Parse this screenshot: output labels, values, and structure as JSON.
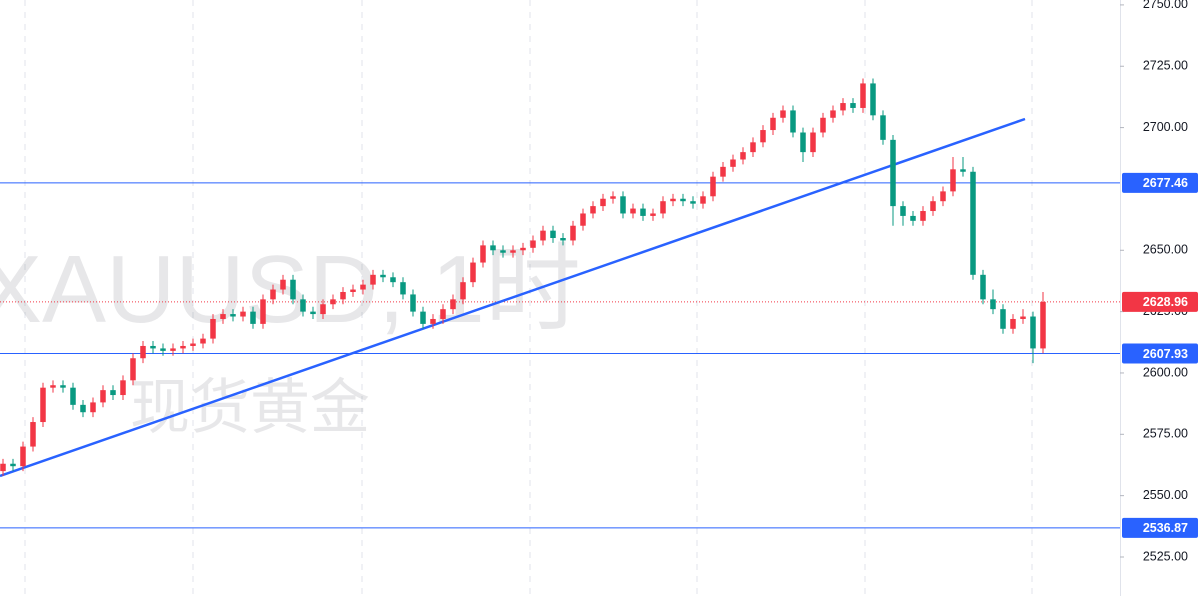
{
  "chart_data": {
    "type": "candlestick",
    "watermark": [
      "XAUUSD, 1时",
      "现货黄金"
    ],
    "up_color": "#f23645",
    "down_color": "#089981",
    "ylim": [
      2509.1,
      2752.0
    ],
    "yticks": [
      {
        "value": 2525,
        "label": "2525.00"
      },
      {
        "value": 2550,
        "label": "2550.00"
      },
      {
        "value": 2575,
        "label": "2575.00"
      },
      {
        "value": 2600,
        "label": "2600.00"
      },
      {
        "value": 2625,
        "label": "2625.00"
      },
      {
        "value": 2650,
        "label": "2650.00"
      },
      {
        "value": 2700,
        "label": "2700.00"
      },
      {
        "value": 2725,
        "label": "2725.00"
      },
      {
        "value": 2750,
        "label": "2750.00"
      }
    ],
    "price_lines": [
      {
        "value": 2677.46,
        "color": "#2962ff"
      },
      {
        "value": 2607.93,
        "color": "#2962ff"
      },
      {
        "value": 2536.87,
        "color": "#2962ff"
      }
    ],
    "last_price": {
      "value": 2628.96,
      "color": "#f23645"
    },
    "open": [
      2560,
      2563,
      2562,
      2570,
      2580,
      2594,
      2595,
      2594,
      2587,
      2584,
      2588,
      2593,
      2591,
      2597,
      2606,
      2611,
      2610,
      2609,
      2610,
      2611,
      2612,
      2614,
      2622,
      2624,
      2623,
      2625,
      2620,
      2630,
      2634,
      2638,
      2630,
      2625,
      2624,
      2628,
      2630,
      2633,
      2634,
      2636,
      2640,
      2639,
      2637,
      2632,
      2625,
      2620,
      2622,
      2626,
      2630,
      2637,
      2645,
      2652,
      2650,
      2649,
      2650,
      2651,
      2654,
      2658,
      2655,
      2654,
      2660,
      2665,
      2668,
      2671,
      2672,
      2665,
      2667,
      2664,
      2665,
      2670,
      2671,
      2670,
      2669,
      2672,
      2680,
      2684,
      2687,
      2690,
      2694,
      2699,
      2704,
      2707,
      2698,
      2690,
      2698,
      2704,
      2707,
      2710,
      2708,
      2718,
      2705,
      2695,
      2668,
      2664,
      2662,
      2666,
      2670,
      2674,
      2683,
      2682,
      2640,
      2630,
      2626,
      2618,
      2622,
      2623,
      2610
    ],
    "high": [
      2565,
      2565,
      2572,
      2582,
      2596,
      2597,
      2597,
      2596,
      2589,
      2590,
      2595,
      2595,
      2599,
      2608,
      2613,
      2613,
      2612,
      2612,
      2613,
      2614,
      2616,
      2624,
      2626,
      2626,
      2627,
      2627,
      2632,
      2636,
      2640,
      2640,
      2632,
      2627,
      2630,
      2632,
      2635,
      2636,
      2638,
      2642,
      2642,
      2641,
      2639,
      2634,
      2627,
      2624,
      2628,
      2632,
      2639,
      2647,
      2654,
      2654,
      2652,
      2652,
      2653,
      2656,
      2660,
      2660,
      2657,
      2662,
      2667,
      2670,
      2673,
      2674,
      2674,
      2669,
      2669,
      2667,
      2672,
      2673,
      2673,
      2672,
      2674,
      2682,
      2686,
      2689,
      2692,
      2696,
      2701,
      2706,
      2709,
      2709,
      2700,
      2700,
      2706,
      2709,
      2712,
      2712,
      2720,
      2720,
      2707,
      2697,
      2670,
      2666,
      2668,
      2672,
      2676,
      2688,
      2688,
      2684,
      2642,
      2634,
      2628,
      2624,
      2626,
      2625,
      2633
    ],
    "low": [
      2558,
      2560,
      2560,
      2568,
      2578,
      2592,
      2592,
      2585,
      2582,
      2582,
      2586,
      2589,
      2589,
      2595,
      2604,
      2608,
      2607,
      2607,
      2608,
      2609,
      2610,
      2612,
      2620,
      2621,
      2621,
      2618,
      2618,
      2628,
      2632,
      2628,
      2623,
      2622,
      2622,
      2626,
      2628,
      2631,
      2632,
      2634,
      2637,
      2635,
      2630,
      2623,
      2618,
      2618,
      2620,
      2624,
      2628,
      2635,
      2643,
      2648,
      2647,
      2647,
      2648,
      2649,
      2652,
      2653,
      2652,
      2652,
      2658,
      2663,
      2666,
      2669,
      2663,
      2663,
      2662,
      2662,
      2663,
      2668,
      2668,
      2667,
      2667,
      2670,
      2678,
      2682,
      2685,
      2688,
      2692,
      2697,
      2702,
      2696,
      2686,
      2688,
      2696,
      2702,
      2705,
      2706,
      2706,
      2703,
      2693,
      2660,
      2660,
      2660,
      2660,
      2664,
      2668,
      2672,
      2680,
      2638,
      2628,
      2624,
      2616,
      2616,
      2620,
      2604,
      2608
    ],
    "close": [
      2563,
      2562,
      2570,
      2580,
      2594,
      2595,
      2594,
      2587,
      2584,
      2588,
      2593,
      2591,
      2597,
      2606,
      2611,
      2610,
      2609,
      2610,
      2611,
      2612,
      2614,
      2622,
      2624,
      2623,
      2625,
      2620,
      2630,
      2634,
      2638,
      2630,
      2625,
      2624,
      2628,
      2630,
      2633,
      2634,
      2636,
      2640,
      2639,
      2637,
      2632,
      2625,
      2620,
      2622,
      2626,
      2630,
      2637,
      2645,
      2652,
      2650,
      2649,
      2650,
      2651,
      2654,
      2658,
      2655,
      2654,
      2660,
      2665,
      2668,
      2671,
      2672,
      2665,
      2667,
      2664,
      2665,
      2670,
      2671,
      2670,
      2669,
      2672,
      2680,
      2684,
      2687,
      2690,
      2694,
      2699,
      2704,
      2707,
      2698,
      2690,
      2698,
      2704,
      2707,
      2710,
      2708,
      2718,
      2705,
      2695,
      2668,
      2664,
      2662,
      2666,
      2670,
      2674,
      2683,
      2682,
      2640,
      2630,
      2626,
      2618,
      2622,
      2623,
      2610,
      2628.96
    ]
  }
}
